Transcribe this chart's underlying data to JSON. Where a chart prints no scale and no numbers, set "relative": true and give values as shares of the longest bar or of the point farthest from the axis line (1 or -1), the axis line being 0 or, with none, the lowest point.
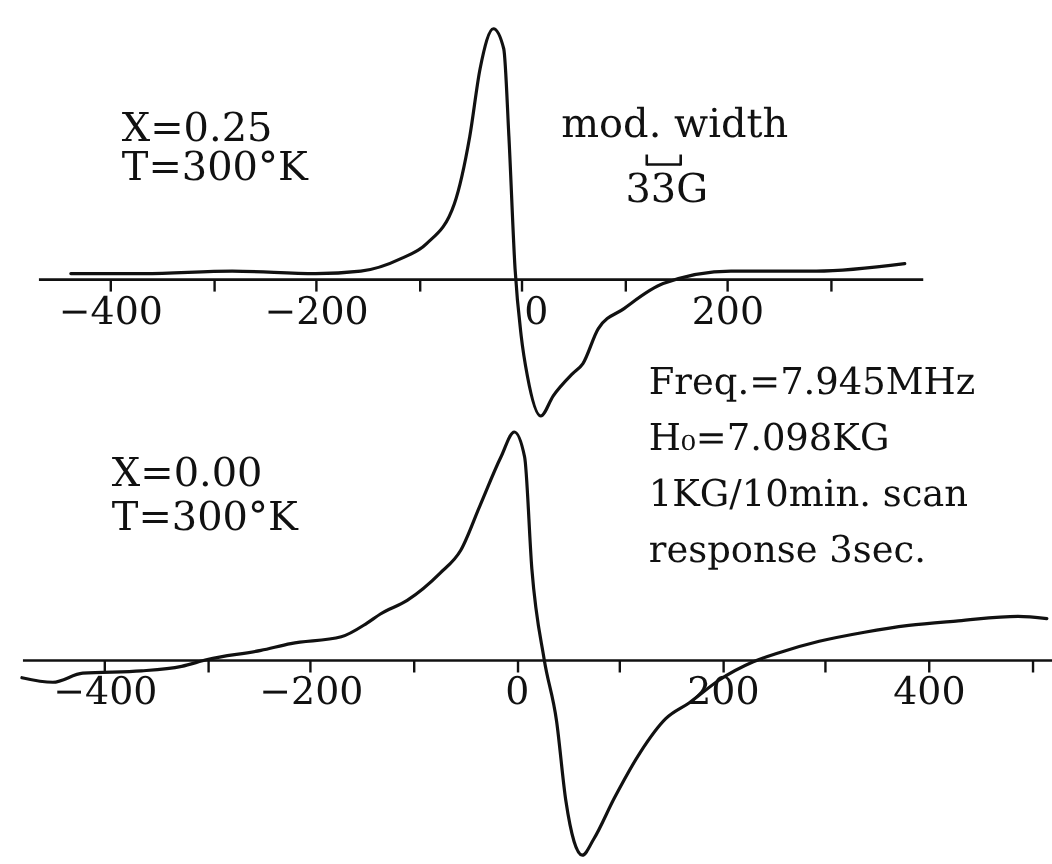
{
  "chart_data": [
    {
      "type": "line",
      "relative": true,
      "x": [
        -438,
        -367,
        -281,
        -200,
        -156,
        -117,
        -92,
        -65,
        -50,
        -40,
        -27,
        -17,
        -12,
        -6,
        0,
        6,
        19,
        31,
        50,
        60,
        75,
        100,
        138,
        204,
        287,
        373
      ],
      "series": [
        {
          "color": "#111111",
          "values": [
            0.02,
            0.02,
            0.03,
            0.02,
            0.03,
            0.08,
            0.14,
            0.3,
            0.57,
            0.84,
            1.0,
            0.92,
            0.57,
            0.04,
            -0.23,
            -0.39,
            -0.55,
            -0.47,
            -0.38,
            -0.34,
            -0.2,
            -0.12,
            -0.02,
            0.03,
            0.03,
            0.06
          ]
        }
      ],
      "xlim": [
        -470,
        390
      ],
      "xticks": [
        -400,
        {
          "value": -300,
          "label": null
        },
        -200,
        {
          "value": -100,
          "label": null
        },
        0,
        {
          "value": 100,
          "label": null
        },
        200,
        {
          "value": 300,
          "label": null
        }
      ],
      "annotations": [
        "X=0.25",
        "T=300°K",
        "mod. width",
        "33G"
      ]
    },
    {
      "type": "line",
      "relative": true,
      "x": [
        -480,
        -450,
        -421,
        -364,
        -325,
        -300,
        -248,
        -219,
        -170,
        -145,
        -132,
        -106,
        -74,
        -54,
        -35,
        -15,
        -2,
        8,
        15,
        27,
        39,
        48,
        56,
        64,
        75,
        95,
        120,
        145,
        168,
        197,
        230,
        255,
        294,
        338,
        381,
        429,
        487,
        515
      ],
      "series": [
        {
          "color": "#111111",
          "values": [
            -0.08,
            -0.1,
            -0.06,
            -0.05,
            -0.03,
            0.0,
            0.04,
            0.07,
            0.1,
            0.16,
            0.2,
            0.26,
            0.38,
            0.48,
            0.68,
            0.89,
            1.0,
            0.89,
            0.4,
            0.0,
            -0.27,
            -0.62,
            -0.8,
            -0.86,
            -0.79,
            -0.61,
            -0.41,
            -0.26,
            -0.19,
            -0.09,
            -0.01,
            0.03,
            0.08,
            0.12,
            0.15,
            0.17,
            0.19,
            0.18
          ]
        }
      ],
      "xlim": [
        -480,
        520
      ],
      "xticks": [
        -400,
        {
          "value": -300,
          "label": null
        },
        -200,
        {
          "value": -100,
          "label": null
        },
        0,
        {
          "value": 100,
          "label": null
        },
        200,
        {
          "value": 300,
          "label": null
        },
        400,
        {
          "value": 500,
          "label": null
        }
      ],
      "annotations": [
        "X=0.00",
        "T=300°K",
        "Freq.=7.945MHz",
        "H₀=7.098KG",
        "1KG/10min. scan",
        "response 3sec."
      ]
    }
  ]
}
